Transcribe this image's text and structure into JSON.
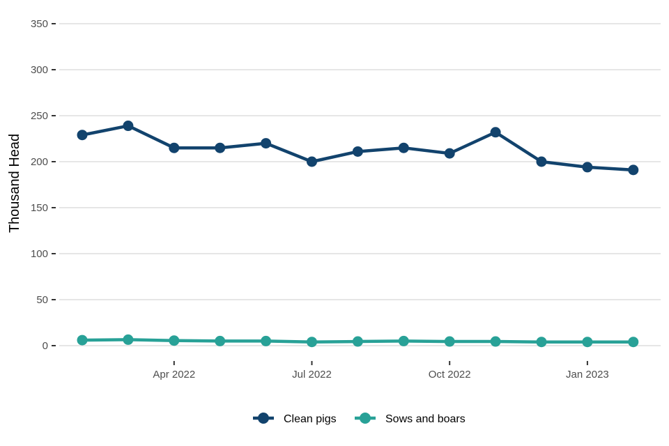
{
  "chart_data": {
    "type": "line",
    "title": "",
    "xlabel": "",
    "ylabel": "Thousand Head",
    "x": [
      "2022-02",
      "2022-03",
      "2022-04",
      "2022-05",
      "2022-06",
      "2022-07",
      "2022-08",
      "2022-09",
      "2022-10",
      "2022-11",
      "2022-12",
      "2023-01",
      "2023-02"
    ],
    "x_tick_labels": [
      {
        "date": "2022-04",
        "label": "Apr 2022"
      },
      {
        "date": "2022-07",
        "label": "Jul 2022"
      },
      {
        "date": "2022-10",
        "label": "Oct 2022"
      },
      {
        "date": "2023-01",
        "label": "Jan 2023"
      }
    ],
    "ylim": [
      0,
      350
    ],
    "y_ticks": [
      0,
      50,
      100,
      150,
      200,
      250,
      300,
      350
    ],
    "grid": true,
    "legend_position": "bottom",
    "series": [
      {
        "name": "Clean pigs",
        "color": "#12436d",
        "values": [
          229,
          239,
          215,
          215,
          220,
          200,
          211,
          215,
          209,
          232,
          200,
          194,
          191
        ]
      },
      {
        "name": "Sows and boars",
        "color": "#28a197",
        "values": [
          6,
          6.5,
          5.5,
          5,
          5,
          4,
          4.5,
          5,
          4.5,
          4.5,
          4,
          4,
          4
        ]
      }
    ]
  }
}
